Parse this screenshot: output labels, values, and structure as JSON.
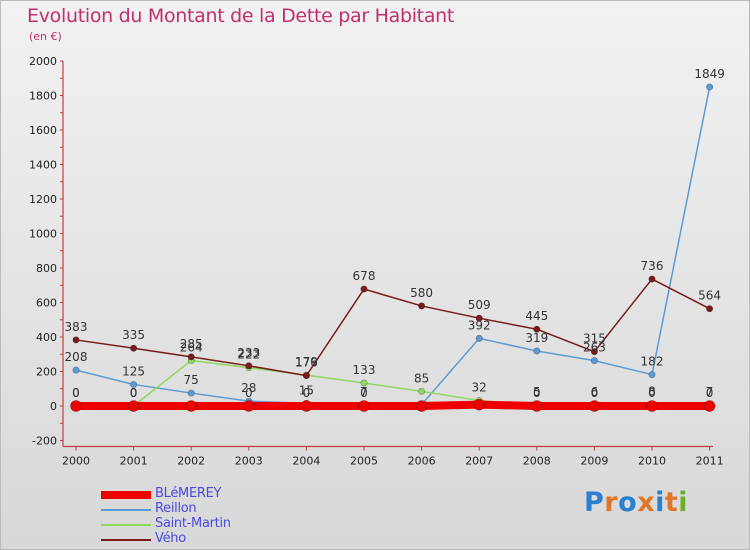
{
  "title": "Evolution du Montant de la Dette par Habitant",
  "subtitle": "(en €)",
  "colors": {
    "title": "#c0306e",
    "axis": "#c04040",
    "text": "#222222"
  },
  "logo": {
    "text": "Proxiti",
    "letter_colors": [
      "#2a7fcf",
      "#e0762a",
      "#2a7fcf",
      "#e0762a",
      "#2a7fcf",
      "#e0762a",
      "#6ab02a"
    ]
  },
  "chart_data": {
    "type": "line",
    "title": "Evolution du Montant de la Dette par Habitant",
    "subtitle": "(en €)",
    "x": [
      "2000",
      "2001",
      "2002",
      "2003",
      "2004",
      "2005",
      "2006",
      "2007",
      "2008",
      "2009",
      "2010",
      "2011"
    ],
    "yticks": [
      -200,
      0,
      200,
      400,
      600,
      800,
      1000,
      1200,
      1400,
      1600,
      1800,
      2000
    ],
    "ylim": [
      -200,
      2000
    ],
    "legend_position": "bottom-left",
    "series": [
      {
        "name": "BLéMEREY",
        "color": "#ee0000",
        "values": [
          0,
          0,
          0,
          0,
          0,
          0,
          0,
          8,
          0,
          0,
          0,
          0
        ],
        "labels": [
          "0",
          "0",
          "",
          "",
          "",
          "",
          "",
          "",
          "",
          "",
          "",
          ""
        ]
      },
      {
        "name": "Reillon",
        "color": "#5b9bd5",
        "values": [
          208,
          125,
          75,
          28,
          15,
          7,
          8,
          392,
          319,
          263,
          182,
          1849
        ],
        "labels": [
          "208",
          "125",
          "75",
          "28",
          "15",
          "7",
          "",
          "392",
          "319",
          "263",
          "182",
          "1849"
        ]
      },
      {
        "name": "Saint-Martin",
        "color": "#8ed860",
        "values": [
          0,
          0,
          264,
          222,
          179,
          133,
          85,
          32,
          5,
          6,
          8,
          7
        ],
        "labels": [
          "0",
          "0",
          "264",
          "222",
          "179",
          "133",
          "85",
          "32",
          "5",
          "6",
          "8",
          "7"
        ]
      },
      {
        "name": "Vého",
        "color": "#7a1a1a",
        "values": [
          383,
          335,
          285,
          233,
          176,
          678,
          580,
          509,
          445,
          315,
          736,
          564
        ],
        "labels": [
          "383",
          "335",
          "285",
          "233",
          "176",
          "678",
          "580",
          "509",
          "445",
          "315",
          "736",
          "564"
        ]
      }
    ],
    "zero_labels": [
      "",
      "",
      "",
      "0",
      "0",
      "0",
      "",
      "",
      "0",
      "0",
      "0",
      "0"
    ]
  }
}
